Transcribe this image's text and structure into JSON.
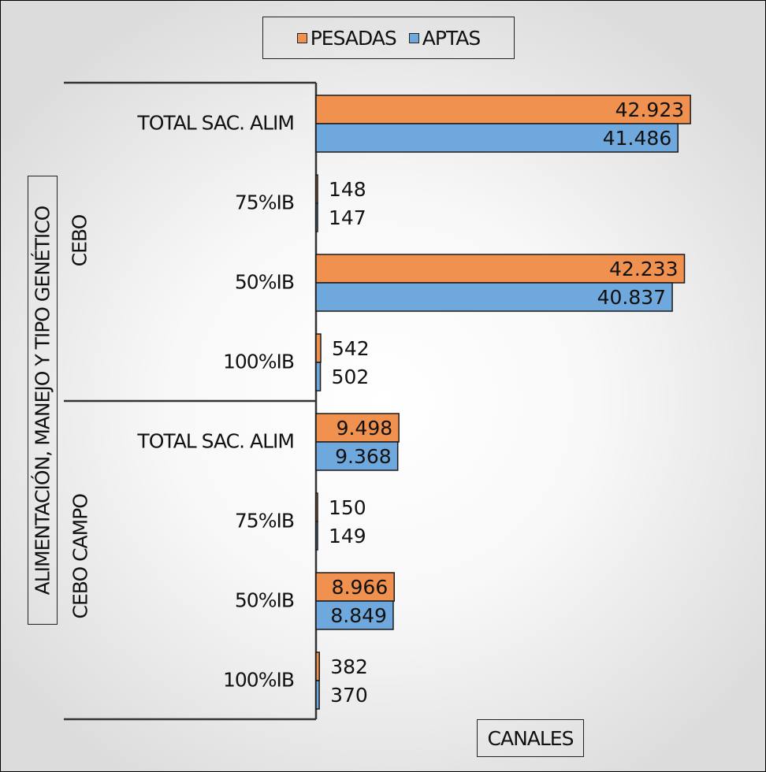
{
  "chart_data": {
    "type": "bar",
    "orientation": "horizontal",
    "x_axis_title": "CANALES",
    "y_axis_title": "ALIMENTACIÓN, MANEJO Y TIPO GENÉTICO",
    "legend_position": "top-center",
    "groups": [
      {
        "name": "CEBO",
        "categories": [
          "TOTAL SAC. ALIM",
          "75%IB",
          "50%IB",
          "100%IB"
        ]
      },
      {
        "name": "CEBO CAMPO",
        "categories": [
          "TOTAL SAC. ALIM",
          "75%IB",
          "50%IB",
          "100%IB"
        ]
      }
    ],
    "series": [
      {
        "name": "PESADAS",
        "color": "#F0914F",
        "values": [
          42923,
          148,
          42233,
          542,
          9498,
          150,
          8966,
          382
        ],
        "labels": [
          "42.923",
          "148",
          "42.233",
          "542",
          "9.498",
          "150",
          "8.966",
          "382"
        ]
      },
      {
        "name": "APTAS",
        "color": "#6FA8DC",
        "values": [
          41486,
          147,
          40837,
          502,
          9368,
          149,
          8849,
          370
        ],
        "labels": [
          "41.486",
          "147",
          "40.837",
          "502",
          "9.368",
          "149",
          "8.849",
          "370"
        ]
      }
    ],
    "xlim": [
      0,
      50000
    ],
    "grid": false
  }
}
